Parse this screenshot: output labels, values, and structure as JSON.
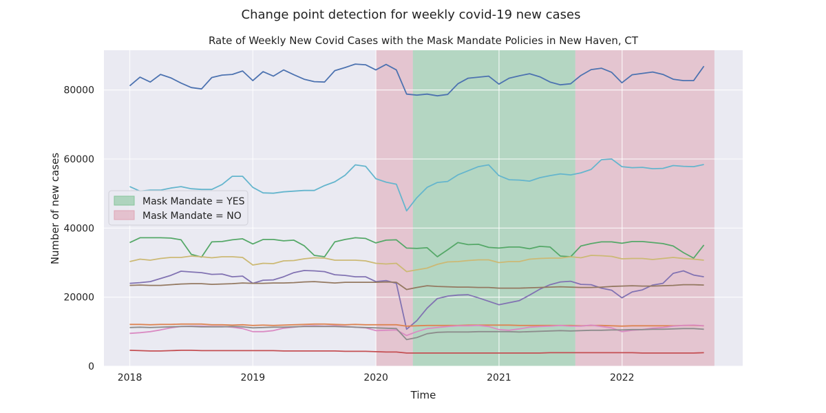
{
  "chart_data": {
    "type": "line",
    "suptitle": "Change point detection for weekly covid-19 new cases",
    "title": "Rate of Weekly New Covid Cases with the Mask Mandate Policies in New Haven, CT",
    "xlabel": "Time",
    "ylabel": "Number of new cases",
    "xlim": [
      2017.79,
      2022.98
    ],
    "ylim": [
      0,
      91500
    ],
    "grid": true,
    "background": "#eaeaf2",
    "x_ticks": [
      {
        "value": 2018,
        "label": "2018"
      },
      {
        "value": 2019,
        "label": "2019"
      },
      {
        "value": 2020,
        "label": "2020"
      },
      {
        "value": 2021,
        "label": "2021"
      },
      {
        "value": 2022,
        "label": "2022"
      }
    ],
    "y_ticks": [
      {
        "value": 0,
        "label": "0"
      },
      {
        "value": 20000,
        "label": "20000"
      },
      {
        "value": 40000,
        "label": "40000"
      },
      {
        "value": 60000,
        "label": "60000"
      },
      {
        "value": 80000,
        "label": "80000"
      }
    ],
    "regions": [
      {
        "label": "Mask Mandate = NO",
        "start": 2020.0,
        "end": 2020.3,
        "color": "#dfa5b5"
      },
      {
        "label": "Mask Mandate = YES",
        "start": 2020.3,
        "end": 2021.62,
        "color": "#86c59b"
      },
      {
        "label": "Mask Mandate = NO",
        "start": 2021.62,
        "end": 2022.75,
        "color": "#dfa5b5"
      }
    ],
    "legend": {
      "position": "center-left",
      "entries": [
        {
          "label": "Mask Mandate = YES",
          "color": "#86c59b"
        },
        {
          "label": "Mask Mandate = NO",
          "color": "#dfa5b5"
        }
      ]
    },
    "x_start": 2018.0,
    "x_step": 0.0833,
    "series": [
      {
        "color": "#4c72b0",
        "values": [
          81200,
          83700,
          82300,
          84500,
          83500,
          82000,
          80700,
          80300,
          83600,
          84300,
          84500,
          85500,
          82700,
          85300,
          84000,
          85800,
          84400,
          83100,
          82400,
          82300,
          85600,
          86500,
          87500,
          87300,
          85800,
          87400,
          85800,
          78800,
          78500,
          78800,
          78300,
          78700,
          81800,
          83400,
          83700,
          84000,
          81700,
          83400,
          84100,
          84700,
          83800,
          82300,
          81500,
          81800,
          84200,
          85900,
          86300,
          85100,
          82100,
          84400,
          84800,
          85200,
          84500,
          83100,
          82700,
          82700,
          86900
        ]
      },
      {
        "color": "#64b5cd",
        "values": [
          52000,
          50700,
          51000,
          51000,
          51600,
          52000,
          51400,
          51200,
          51200,
          52600,
          55000,
          55000,
          51800,
          50200,
          50100,
          50500,
          50700,
          50900,
          50900,
          52300,
          53400,
          55300,
          58300,
          57900,
          54300,
          53300,
          52700,
          45000,
          48800,
          51800,
          53200,
          53500,
          55400,
          56600,
          57800,
          58300,
          55200,
          54000,
          53900,
          53600,
          54600,
          55200,
          55700,
          55400,
          56000,
          57000,
          59800,
          60000,
          57800,
          57500,
          57600,
          57200,
          57300,
          58100,
          57900,
          57800,
          58400
        ]
      },
      {
        "color": "#55a868",
        "values": [
          35800,
          37200,
          37200,
          37200,
          37100,
          36600,
          32400,
          31600,
          36000,
          36100,
          36600,
          36900,
          35400,
          36700,
          36700,
          36300,
          36500,
          34900,
          32100,
          31700,
          36000,
          36700,
          37200,
          37000,
          35700,
          36500,
          36600,
          34200,
          34100,
          34300,
          31700,
          33700,
          35800,
          35200,
          35300,
          34400,
          34200,
          34500,
          34500,
          34000,
          34700,
          34500,
          31900,
          31700,
          34800,
          35500,
          36000,
          36000,
          35600,
          36100,
          36100,
          35800,
          35500,
          34800,
          32900,
          31300,
          35100
        ]
      },
      {
        "color": "#ccb974",
        "values": [
          30300,
          31000,
          30700,
          31200,
          31500,
          31500,
          31900,
          31700,
          31400,
          31700,
          31700,
          31500,
          29300,
          29800,
          29700,
          30500,
          30600,
          31100,
          31400,
          31300,
          30700,
          30700,
          30700,
          30500,
          29800,
          29600,
          29800,
          27400,
          27900,
          28400,
          29500,
          30200,
          30300,
          30600,
          30800,
          30800,
          30000,
          30300,
          30300,
          31000,
          31200,
          31300,
          31300,
          31700,
          31400,
          32100,
          32000,
          31800,
          31100,
          31200,
          31200,
          30900,
          31200,
          31500,
          31200,
          31000,
          30700
        ]
      },
      {
        "color": "#8172b2",
        "values": [
          24000,
          24200,
          24500,
          25400,
          26300,
          27500,
          27300,
          27100,
          26600,
          26700,
          25900,
          26100,
          24000,
          24900,
          25000,
          25900,
          27100,
          27700,
          27600,
          27400,
          26500,
          26300,
          25900,
          25900,
          24500,
          24800,
          24000,
          10700,
          13200,
          16800,
          19600,
          20300,
          20600,
          20700,
          19800,
          18800,
          17800,
          18400,
          19000,
          20600,
          22300,
          23600,
          24400,
          24600,
          23700,
          23600,
          22600,
          22000,
          19800,
          21500,
          22100,
          23500,
          24000,
          26900,
          27600,
          26400,
          25900
        ]
      },
      {
        "color": "#937860",
        "values": [
          23400,
          23500,
          23400,
          23400,
          23600,
          23800,
          23900,
          23900,
          23700,
          23800,
          23900,
          24100,
          24000,
          24000,
          24100,
          24100,
          24200,
          24400,
          24500,
          24300,
          24100,
          24300,
          24300,
          24300,
          24300,
          24400,
          24300,
          22200,
          22800,
          23300,
          23100,
          23000,
          22900,
          22900,
          22800,
          22800,
          22600,
          22600,
          22600,
          22700,
          22800,
          22900,
          23000,
          22900,
          22800,
          22800,
          22900,
          23100,
          23200,
          23300,
          23200,
          23200,
          23300,
          23400,
          23600,
          23600,
          23500
        ]
      },
      {
        "color": "#dd8452",
        "values": [
          12100,
          12100,
          12000,
          12100,
          12100,
          12200,
          12200,
          12200,
          12000,
          12000,
          11900,
          12000,
          11800,
          11900,
          11800,
          11900,
          12000,
          12100,
          12200,
          12200,
          12100,
          12000,
          12100,
          12000,
          12000,
          12000,
          12000,
          11600,
          11700,
          11800,
          11800,
          11800,
          11800,
          11900,
          11900,
          11900,
          11900,
          11900,
          11800,
          11800,
          11800,
          11800,
          11800,
          11800,
          11700,
          11800,
          11800,
          11700,
          11600,
          11700,
          11700,
          11700,
          11700,
          11700,
          11800,
          11800,
          11700
        ]
      },
      {
        "color": "#da8bc3",
        "values": [
          9500,
          9700,
          10000,
          10500,
          11100,
          11500,
          11600,
          11600,
          11500,
          11500,
          11300,
          10900,
          10000,
          10000,
          10300,
          11000,
          11300,
          11600,
          11700,
          11600,
          11700,
          11500,
          11300,
          11100,
          10300,
          10400,
          10500,
          8900,
          10000,
          10900,
          11200,
          11500,
          11700,
          11700,
          11800,
          11500,
          10600,
          10400,
          10800,
          11300,
          11500,
          11600,
          11800,
          11600,
          11600,
          11900,
          11500,
          11100,
          10000,
          10400,
          10600,
          11000,
          11200,
          11600,
          11800,
          11900,
          11700
        ]
      },
      {
        "color": "#8c8c8c",
        "values": [
          11200,
          11300,
          11200,
          11300,
          11400,
          11500,
          11500,
          11400,
          11400,
          11400,
          11500,
          11400,
          11100,
          11200,
          11300,
          11300,
          11400,
          11500,
          11500,
          11500,
          11500,
          11400,
          11300,
          11200,
          11100,
          11000,
          10900,
          7700,
          8300,
          9400,
          9800,
          9900,
          9900,
          9900,
          10000,
          10000,
          10000,
          10000,
          9900,
          10000,
          10100,
          10200,
          10300,
          10200,
          10300,
          10400,
          10400,
          10500,
          10500,
          10600,
          10600,
          10700,
          10700,
          10800,
          10900,
          10900,
          10700
        ]
      },
      {
        "color": "#c44e52",
        "values": [
          4600,
          4500,
          4400,
          4400,
          4500,
          4600,
          4600,
          4500,
          4500,
          4500,
          4500,
          4500,
          4500,
          4500,
          4500,
          4400,
          4400,
          4400,
          4400,
          4400,
          4400,
          4300,
          4300,
          4300,
          4200,
          4100,
          4100,
          3800,
          3800,
          3800,
          3800,
          3800,
          3800,
          3800,
          3800,
          3800,
          3800,
          3800,
          3800,
          3800,
          3800,
          3900,
          3900,
          3900,
          3900,
          3900,
          3900,
          3900,
          3900,
          3900,
          3800,
          3800,
          3800,
          3800,
          3800,
          3800,
          3900
        ]
      }
    ]
  }
}
